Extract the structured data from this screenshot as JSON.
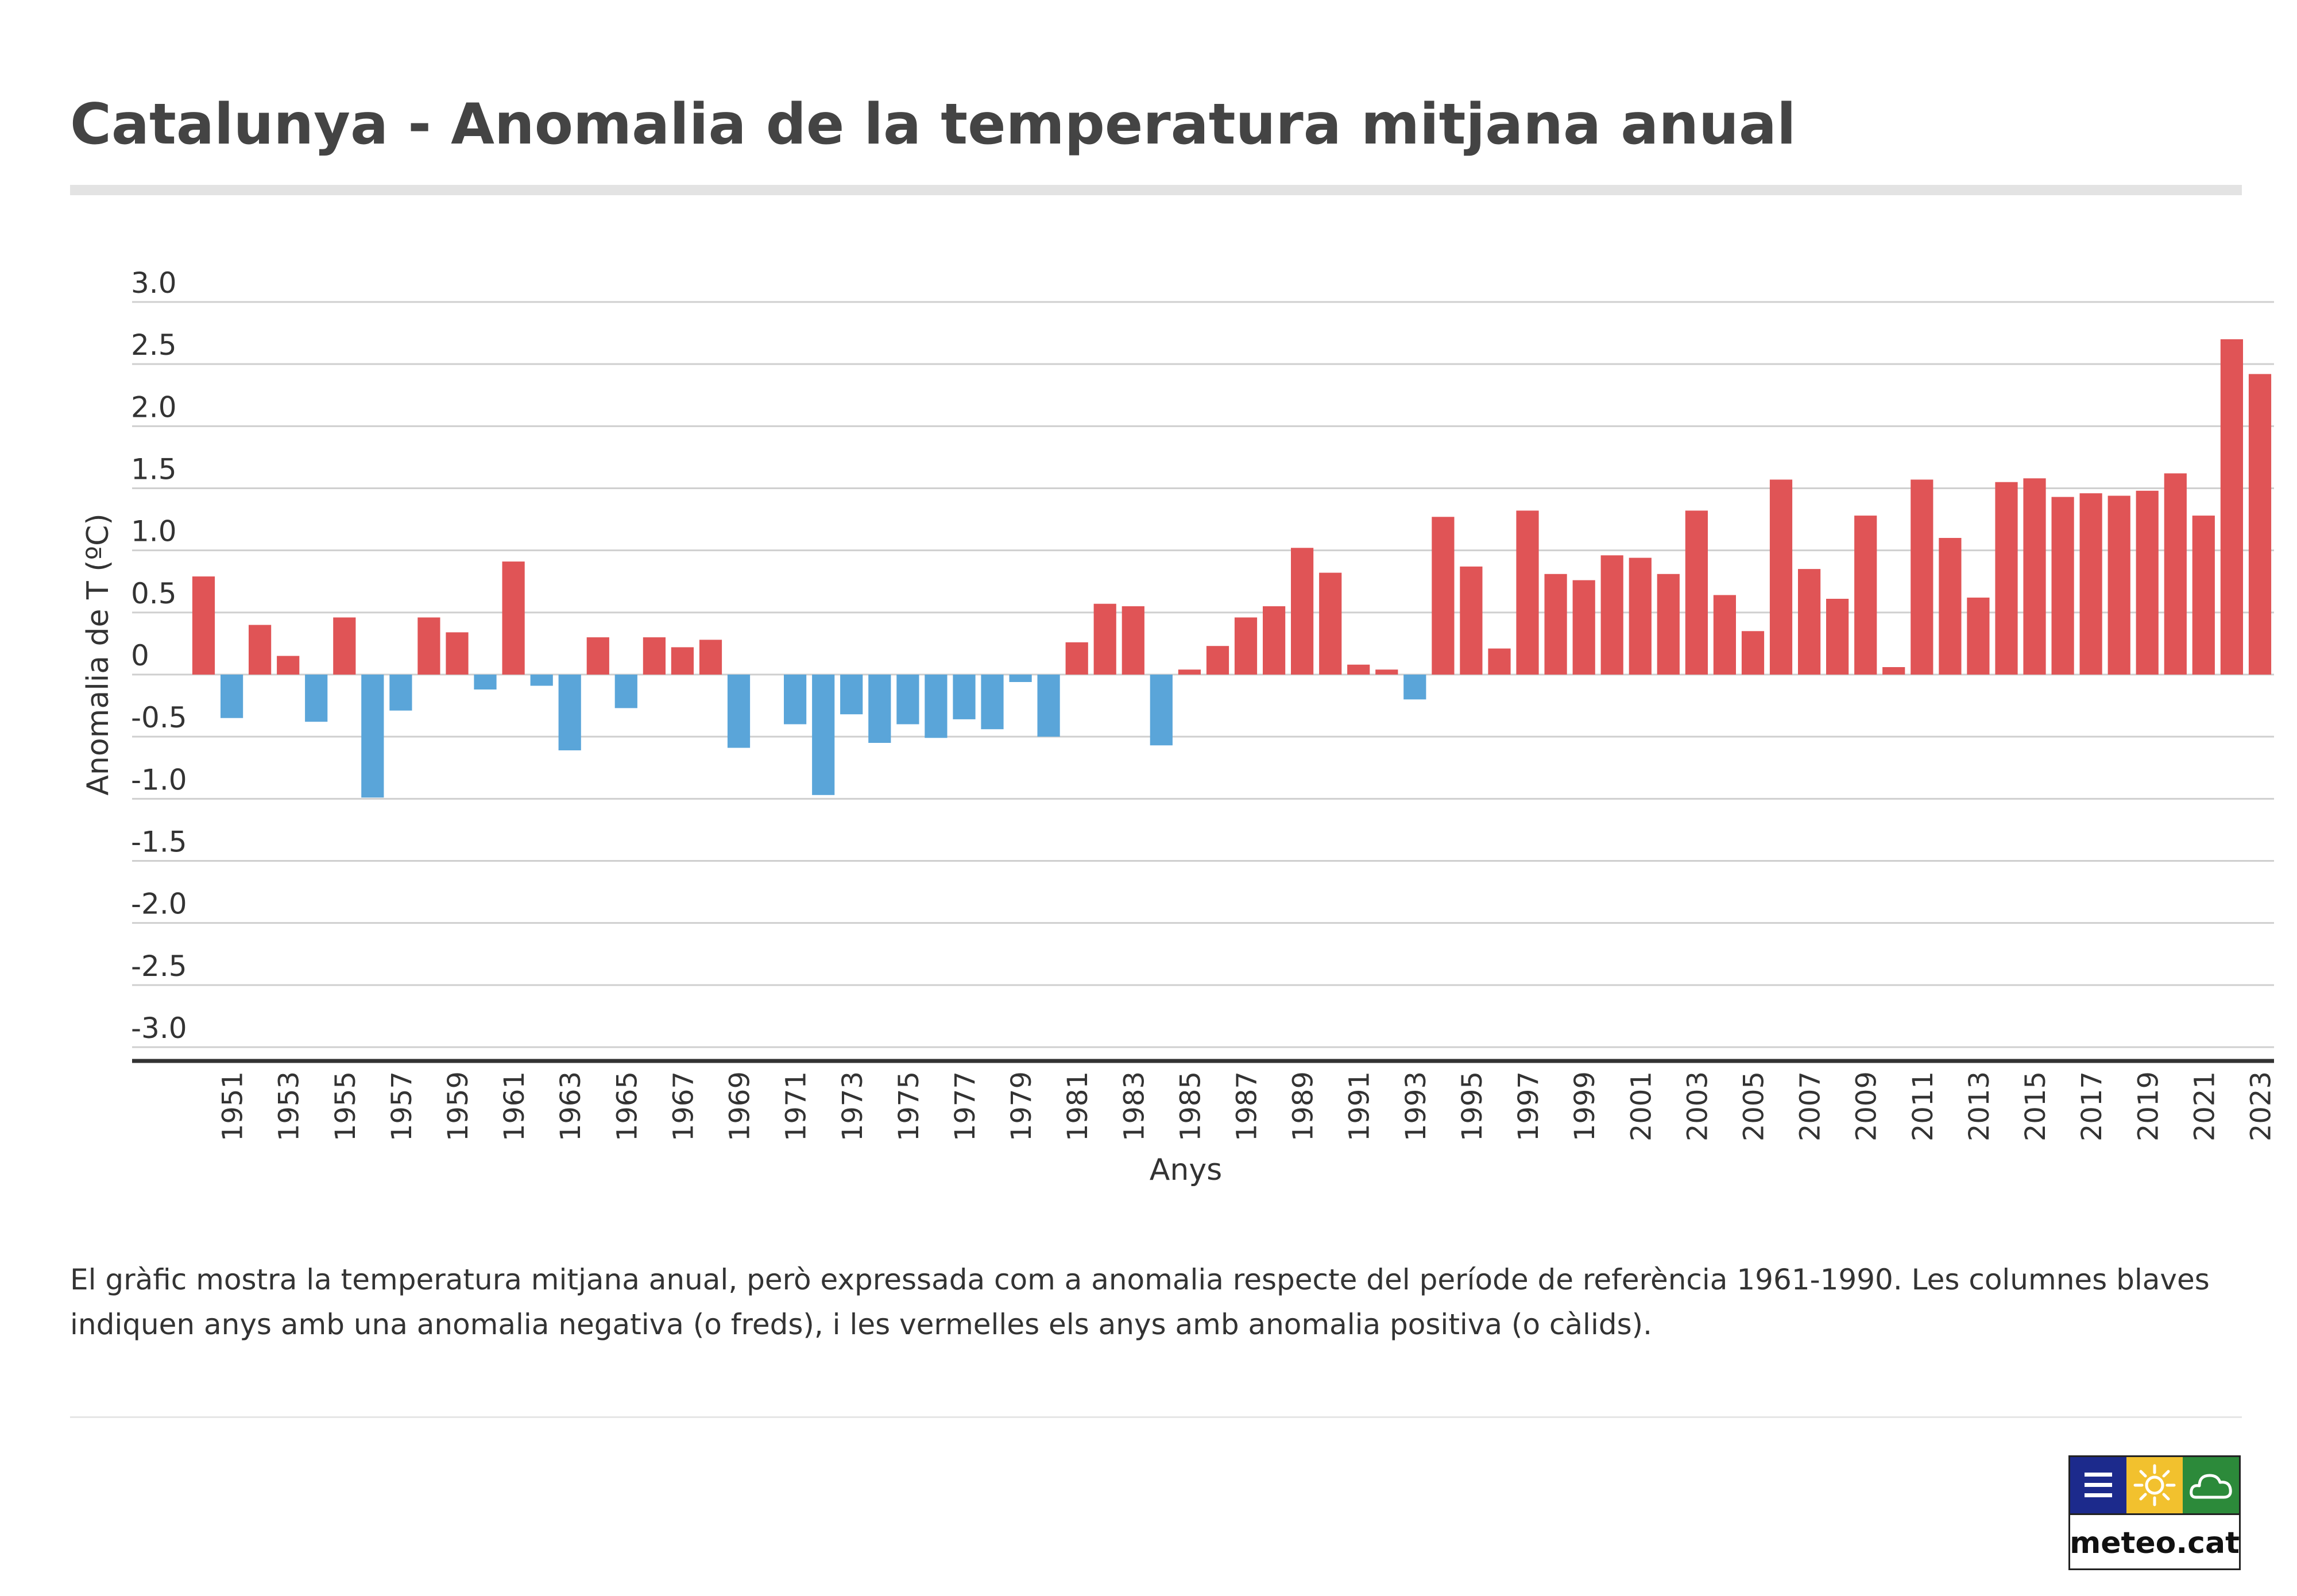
{
  "title": "Catalunya - Anomalia de la temperatura mitjana anual",
  "caption": "El gràfic mostra la temperatura mitjana anual, però expressada com a anomalia respecte del període de referència 1961-1990. Les columnes blaves indiquen anys amb una anomalia negativa (o freds), i les vermelles els anys amb anomalia positiva (o càlids).",
  "logo": {
    "text": "meteo.cat",
    "tiles": [
      "bars-icon",
      "sun-icon",
      "cloud-icon"
    ],
    "colors": {
      "blue": "#1c2a8c",
      "yellow": "#f2c12e",
      "green": "#2c8a3a"
    }
  },
  "colors": {
    "positive": "#e05456",
    "negative": "#5aa5d9",
    "grid": "#cfcfcf",
    "axis": "#333333"
  },
  "chart_data": {
    "type": "bar",
    "title": "Catalunya - Anomalia de la temperatura mitjana anual",
    "xlabel": "Anys",
    "ylabel": "Anomalia de T (ºC)",
    "ylim": [
      -3.0,
      3.0
    ],
    "yticks": [
      "3.0",
      "2.5",
      "2.0",
      "1.5",
      "1.0",
      "0.5",
      "0",
      "-0.5",
      "-1.0",
      "-1.5",
      "-2.0",
      "-2.5",
      "-3.0"
    ],
    "ytick_values": [
      3.0,
      2.5,
      2.0,
      1.5,
      1.0,
      0.5,
      0,
      -0.5,
      -1.0,
      -1.5,
      -2.0,
      -2.5,
      -3.0
    ],
    "xticks": [
      "1951",
      "1953",
      "1955",
      "1957",
      "1959",
      "1961",
      "1963",
      "1965",
      "1967",
      "1969",
      "1971",
      "1973",
      "1975",
      "1977",
      "1979",
      "1981",
      "1983",
      "1985",
      "1987",
      "1989",
      "1991",
      "1993",
      "1995",
      "1997",
      "1999",
      "2001",
      "2003",
      "2005",
      "2007",
      "2009",
      "2011",
      "2013",
      "2015",
      "2017",
      "2019",
      "2021",
      "2023"
    ],
    "grid": true,
    "categories": [
      1950,
      1951,
      1952,
      1953,
      1954,
      1955,
      1956,
      1957,
      1958,
      1959,
      1960,
      1961,
      1962,
      1963,
      1964,
      1965,
      1966,
      1967,
      1968,
      1969,
      1970,
      1971,
      1972,
      1973,
      1974,
      1975,
      1976,
      1977,
      1978,
      1979,
      1980,
      1981,
      1982,
      1983,
      1984,
      1985,
      1986,
      1987,
      1988,
      1989,
      1990,
      1991,
      1992,
      1993,
      1994,
      1995,
      1996,
      1997,
      1998,
      1999,
      2000,
      2001,
      2002,
      2003,
      2004,
      2005,
      2006,
      2007,
      2008,
      2009,
      2010,
      2011,
      2012,
      2013,
      2014,
      2015,
      2016,
      2017,
      2018,
      2019,
      2020,
      2021,
      2022,
      2023
    ],
    "values": [
      0.79,
      -0.35,
      0.4,
      0.15,
      -0.38,
      0.46,
      -0.99,
      -0.29,
      0.46,
      0.34,
      -0.12,
      0.91,
      -0.09,
      -0.61,
      0.3,
      -0.27,
      0.3,
      0.22,
      0.28,
      -0.59,
      0.0,
      -0.4,
      -0.97,
      -0.32,
      -0.55,
      -0.4,
      -0.51,
      -0.36,
      -0.44,
      -0.06,
      -0.5,
      0.26,
      0.57,
      0.55,
      -0.57,
      0.04,
      0.23,
      0.46,
      0.55,
      1.02,
      0.82,
      0.08,
      0.04,
      -0.2,
      1.27,
      0.87,
      0.21,
      1.32,
      0.81,
      0.76,
      0.96,
      0.94,
      0.81,
      1.32,
      0.64,
      0.35,
      1.57,
      0.85,
      0.61,
      1.28,
      0.06,
      1.57,
      1.1,
      0.62,
      1.55,
      1.58,
      1.43,
      1.46,
      1.44,
      1.48,
      1.62,
      1.28,
      2.7,
      2.42
    ]
  }
}
